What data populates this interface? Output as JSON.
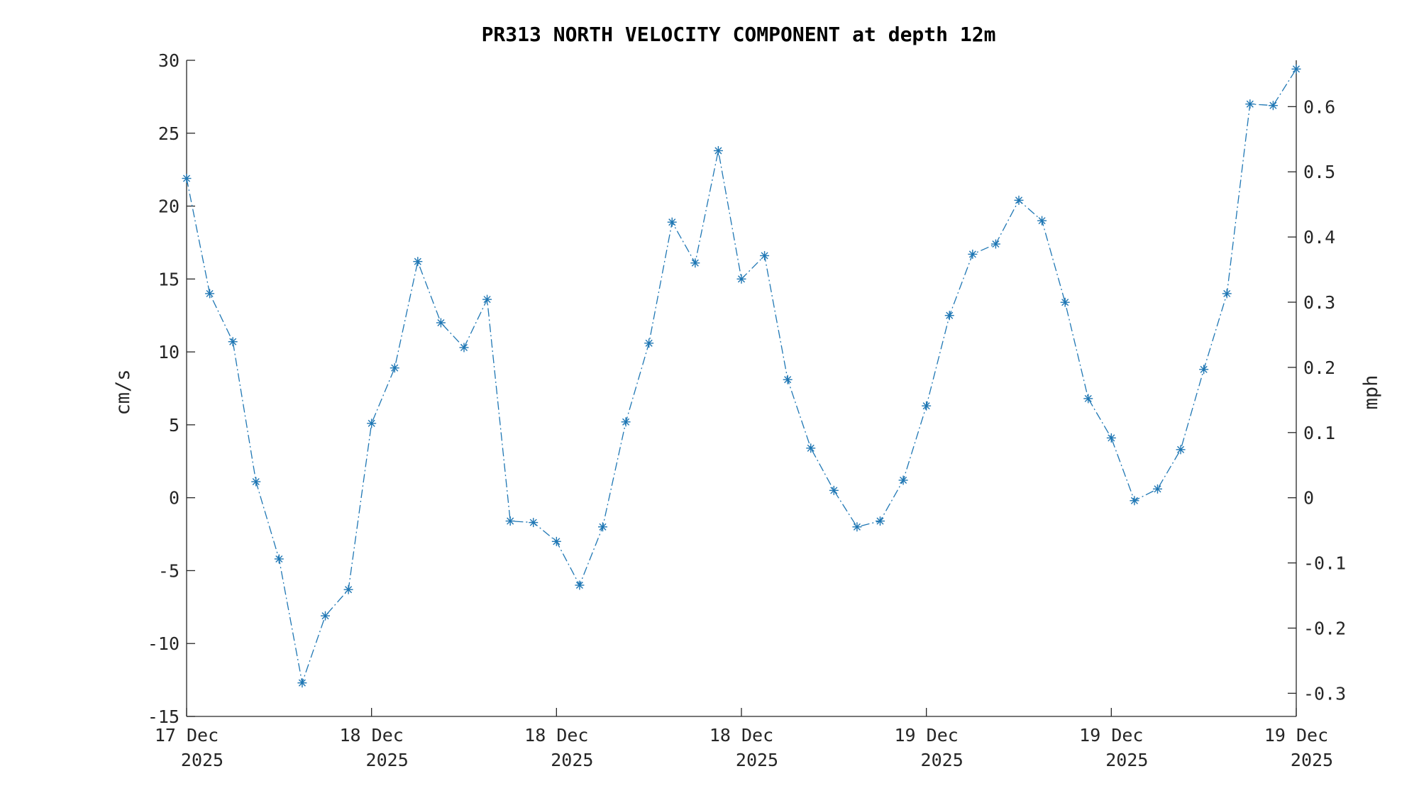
{
  "chart_data": {
    "type": "line",
    "title": "PR313 NORTH VELOCITY COMPONENT at depth 12m",
    "ylabel": "cm/s",
    "ylabel_right": "mph",
    "ylim": [
      -15,
      30
    ],
    "ylim_right": [
      -0.3355,
      0.6711
    ],
    "yticks": [
      -15,
      -10,
      -5,
      0,
      5,
      10,
      15,
      20,
      25,
      30
    ],
    "yticks_right": [
      -0.3,
      -0.2,
      -0.1,
      0,
      0.1,
      0.2,
      0.3,
      0.4,
      0.5,
      0.6
    ],
    "xticks": [
      {
        "line1": "17 Dec",
        "line2": "2025"
      },
      {
        "line1": "18 Dec",
        "line2": "2025"
      },
      {
        "line1": "18 Dec",
        "line2": "2025"
      },
      {
        "line1": "18 Dec",
        "line2": "2025"
      },
      {
        "line1": "19 Dec",
        "line2": "2025"
      },
      {
        "line1": "19 Dec",
        "line2": "2025"
      },
      {
        "line1": "19 Dec",
        "line2": "2025"
      }
    ],
    "marker": "asterisk",
    "line_style": "dash-dot",
    "grid": false,
    "color": "#1f77b4",
    "series": [
      {
        "values": [
          21.9,
          14.0,
          10.7,
          1.1,
          -4.2,
          -12.7,
          -8.1,
          -6.3,
          5.1,
          8.9,
          16.2,
          12.0,
          10.3,
          13.6,
          -1.6,
          -1.7,
          -3.0,
          -6.0,
          -2.0,
          5.2,
          10.6,
          18.9,
          16.1,
          23.8,
          15.0,
          16.6,
          8.1,
          3.4,
          0.5,
          -2.0,
          -1.6,
          1.2,
          6.3,
          12.5,
          16.7,
          17.4,
          20.4,
          19.0,
          13.4,
          6.8,
          4.1,
          -0.2,
          0.6,
          3.3,
          8.8,
          14.0,
          27.0,
          26.9,
          29.4
        ]
      }
    ]
  }
}
